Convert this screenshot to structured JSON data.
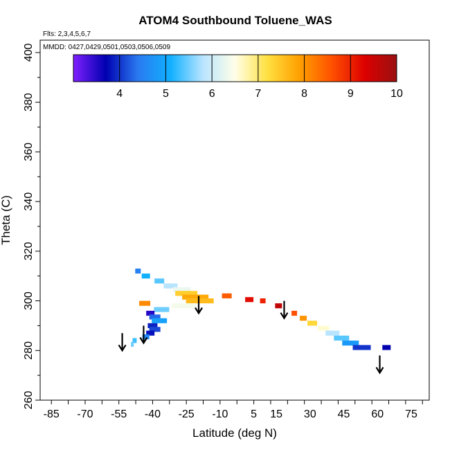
{
  "chart_data": {
    "type": "heatmap",
    "title": "ATOM4 Southbound Toluene_WAS",
    "flights_note": "Flts: 2,3,4,5,6,7",
    "dates_note": "MMDD: 0427,0429,0501,0503,0506,0509",
    "xlabel": "Latitude (deg N)",
    "ylabel": "Theta (C)",
    "xlim": [
      -90,
      83
    ],
    "ylim": [
      260,
      405
    ],
    "x_ticks": [
      -85,
      -70,
      -55,
      -40,
      -25,
      -10,
      5,
      15,
      30,
      45,
      60,
      75
    ],
    "y_ticks": [
      260,
      280,
      300,
      320,
      340,
      360,
      380,
      400
    ],
    "colorbar": {
      "range": [
        3,
        10
      ],
      "ticks": [
        4,
        5,
        6,
        7,
        8,
        9,
        10
      ],
      "stops": [
        "#8020ff",
        "#0000b0",
        "#2a7af0",
        "#10b0ff",
        "#b8e4ff",
        "#ffffe8",
        "#ffe040",
        "#ffa000",
        "#ff5000",
        "#dd0000",
        "#9a1010"
      ]
    },
    "cells": [
      {
        "lat": -43.5,
        "theta": 299.0,
        "w": 16,
        "value": 8.1
      },
      {
        "lat": -46.5,
        "theta": 312.0,
        "w": 8,
        "value": 4.5
      },
      {
        "lat": -43.0,
        "theta": 310.0,
        "w": 12,
        "value": 5.1
      },
      {
        "lat": -37.0,
        "theta": 308.0,
        "w": 14,
        "value": 5.4
      },
      {
        "lat": -32.0,
        "theta": 306.0,
        "w": 20,
        "value": 5.8
      },
      {
        "lat": -27.0,
        "theta": 304.5,
        "w": 26,
        "value": 6.3
      },
      {
        "lat": -25.0,
        "theta": 303.0,
        "w": 32,
        "value": 7.4
      },
      {
        "lat": -21.0,
        "theta": 301.5,
        "w": 38,
        "value": 7.8
      },
      {
        "lat": -19.0,
        "theta": 300.0,
        "w": 40,
        "value": 7.6
      },
      {
        "lat": -26.0,
        "theta": 298.0,
        "w": 36,
        "value": 6.4
      },
      {
        "lat": -36.0,
        "theta": 296.5,
        "w": 22,
        "value": 5.5
      },
      {
        "lat": -41.0,
        "theta": 295.0,
        "w": 12,
        "value": 3.5
      },
      {
        "lat": -39.0,
        "theta": 293.5,
        "w": 16,
        "value": 4.3
      },
      {
        "lat": -37.0,
        "theta": 292.0,
        "w": 22,
        "value": 4.9
      },
      {
        "lat": -40.0,
        "theta": 290.0,
        "w": 14,
        "value": 3.9
      },
      {
        "lat": -39.0,
        "theta": 288.5,
        "w": 16,
        "value": 4.1
      },
      {
        "lat": -41.0,
        "theta": 287.0,
        "w": 12,
        "value": 3.8
      },
      {
        "lat": -43.0,
        "theta": 285.5,
        "w": 10,
        "value": 4.6
      },
      {
        "lat": -48.0,
        "theta": 284.0,
        "w": 6,
        "value": 5.3
      },
      {
        "lat": -49.0,
        "theta": 282.5,
        "w": 4,
        "value": 5.5
      },
      {
        "lat": -7.0,
        "theta": 302.0,
        "w": 14,
        "value": 8.5
      },
      {
        "lat": 3.0,
        "theta": 300.5,
        "w": 12,
        "value": 9.2
      },
      {
        "lat": 9.0,
        "theta": 300.0,
        "w": 8,
        "value": 9.0
      },
      {
        "lat": 16.0,
        "theta": 298.0,
        "w": 10,
        "value": 9.6
      },
      {
        "lat": 23.0,
        "theta": 295.0,
        "w": 8,
        "value": 8.6
      },
      {
        "lat": 27.0,
        "theta": 293.0,
        "w": 10,
        "value": 8.0
      },
      {
        "lat": 31.0,
        "theta": 291.0,
        "w": 14,
        "value": 7.3
      },
      {
        "lat": 36.0,
        "theta": 289.0,
        "w": 16,
        "value": 6.6
      },
      {
        "lat": 40.0,
        "theta": 287.0,
        "w": 20,
        "value": 5.8
      },
      {
        "lat": 44.0,
        "theta": 285.0,
        "w": 22,
        "value": 5.4
      },
      {
        "lat": 48.0,
        "theta": 283.0,
        "w": 24,
        "value": 4.8
      },
      {
        "lat": 53.0,
        "theta": 281.2,
        "w": 26,
        "value": 4.0
      },
      {
        "lat": 64.0,
        "theta": 281.2,
        "w": 12,
        "value": 3.7
      }
    ],
    "arrows": [
      {
        "lat": -53.5,
        "theta_top": 287,
        "theta_bottom": 280
      },
      {
        "lat": -44.0,
        "theta_top": 290,
        "theta_bottom": 283
      },
      {
        "lat": -19.5,
        "theta_top": 302,
        "theta_bottom": 295
      },
      {
        "lat": 18.5,
        "theta_top": 300,
        "theta_bottom": 293
      },
      {
        "lat": 61.0,
        "theta_top": 278,
        "theta_bottom": 271
      }
    ]
  }
}
